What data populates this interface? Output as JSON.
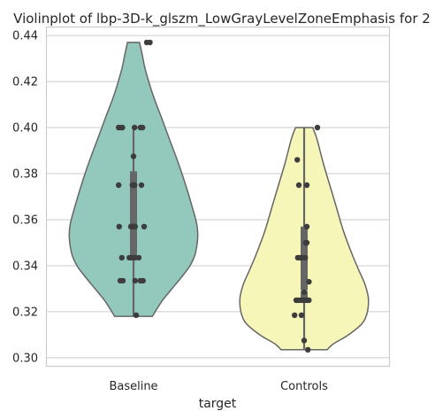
{
  "chart_data": {
    "type": "violin",
    "title": "Violinplot of lbp-3D-k_glszm_LowGrayLevelZoneEmphasis for 2",
    "xlabel": "target",
    "ylabel": "",
    "categories": [
      "Baseline",
      "Controls"
    ],
    "ylim": [
      0.2965,
      0.4435
    ],
    "yticks": [
      0.3,
      0.32,
      0.34,
      0.36,
      0.38,
      0.4,
      0.42,
      0.44
    ],
    "ytick_labels": [
      "0.30",
      "0.32",
      "0.34",
      "0.36",
      "0.38",
      "0.40",
      "0.42",
      "0.44"
    ],
    "grid": true,
    "groups": [
      {
        "category": "Baseline",
        "color": "#93c9bd",
        "points": [
          0.437,
          0.437,
          0.4,
          0.4,
          0.4,
          0.4,
          0.4,
          0.4,
          0.3875,
          0.375,
          0.375,
          0.375,
          0.375,
          0.357,
          0.357,
          0.357,
          0.357,
          0.357,
          0.357,
          0.357,
          0.3435,
          0.3435,
          0.3435,
          0.3435,
          0.3435,
          0.3335,
          0.3335,
          0.3335,
          0.3335,
          0.3335,
          0.3185
        ],
        "points_x_offset": [
          0.25,
          0.31,
          -0.28,
          -0.23,
          -0.21,
          0.13,
          0.17,
          0.02,
          0.0,
          -0.28,
          -0.02,
          0.02,
          0.15,
          -0.27,
          -0.05,
          -0.03,
          -0.01,
          0.02,
          0.03,
          0.2,
          -0.22,
          -0.08,
          -0.03,
          0.03,
          0.1,
          -0.25,
          -0.2,
          0.03,
          0.13,
          0.18,
          0.05
        ],
        "quartiles": {
          "q1": 0.344,
          "median": 0.357,
          "q3": 0.381
        },
        "whiskers": [
          0.318,
          0.4
        ],
        "violin_range": [
          0.318,
          0.437
        ],
        "violin_profile": [
          [
            0.437,
            0.07
          ],
          [
            0.432,
            0.1
          ],
          [
            0.425,
            0.14
          ],
          [
            0.415,
            0.22
          ],
          [
            0.405,
            0.32
          ],
          [
            0.395,
            0.42
          ],
          [
            0.385,
            0.52
          ],
          [
            0.375,
            0.61
          ],
          [
            0.365,
            0.69
          ],
          [
            0.358,
            0.74
          ],
          [
            0.352,
            0.75
          ],
          [
            0.345,
            0.72
          ],
          [
            0.34,
            0.66
          ],
          [
            0.335,
            0.56
          ],
          [
            0.33,
            0.45
          ],
          [
            0.325,
            0.34
          ],
          [
            0.321,
            0.27
          ],
          [
            0.318,
            0.22
          ]
        ]
      },
      {
        "category": "Controls",
        "color": "#f7f6b9",
        "points": [
          0.4,
          0.386,
          0.375,
          0.375,
          0.357,
          0.35,
          0.35,
          0.3435,
          0.3435,
          0.3435,
          0.3435,
          0.333,
          0.3285,
          0.325,
          0.325,
          0.325,
          0.325,
          0.325,
          0.325,
          0.325,
          0.325,
          0.3185,
          0.3185,
          0.3075,
          0.3035
        ],
        "points_x_offset": [
          0.25,
          -0.13,
          -0.1,
          0.05,
          0.05,
          0.03,
          0.05,
          -0.12,
          -0.08,
          -0.05,
          0.02,
          0.09,
          0.0,
          -0.15,
          -0.12,
          -0.08,
          -0.03,
          0.0,
          0.03,
          0.06,
          0.09,
          -0.18,
          -0.05,
          0.0,
          0.07
        ],
        "quartiles": {
          "q1": 0.325,
          "median": 0.329,
          "q3": 0.357
        },
        "whiskers": [
          0.3035,
          0.4
        ],
        "violin_range": [
          0.3035,
          0.4
        ],
        "violin_profile": [
          [
            0.4,
            0.1
          ],
          [
            0.395,
            0.15
          ],
          [
            0.385,
            0.22
          ],
          [
            0.375,
            0.3
          ],
          [
            0.365,
            0.38
          ],
          [
            0.355,
            0.46
          ],
          [
            0.345,
            0.56
          ],
          [
            0.338,
            0.64
          ],
          [
            0.332,
            0.71
          ],
          [
            0.326,
            0.75
          ],
          [
            0.32,
            0.74
          ],
          [
            0.315,
            0.68
          ],
          [
            0.31,
            0.52
          ],
          [
            0.306,
            0.34
          ],
          [
            0.3035,
            0.27
          ]
        ]
      }
    ]
  }
}
